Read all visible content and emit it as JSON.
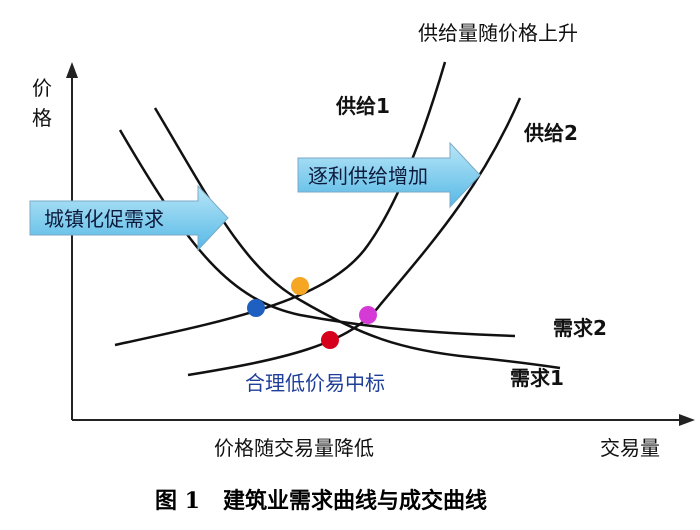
{
  "axes": {
    "y_label_char1": "价",
    "y_label_char2": "格",
    "x_label": "交易量"
  },
  "curves": {
    "supply1": "供给1",
    "supply2": "供给2",
    "demand1": "需求1",
    "demand2": "需求2"
  },
  "annotations": {
    "supply_rise": "供给量随价格上升",
    "price_fall": "价格随交易量降低",
    "reasonable_low_price": "合理低价易中标"
  },
  "arrows": {
    "urbanization": "城镇化促需求",
    "gradual_supply": "逐利供给增加"
  },
  "points": {
    "blue": "#1f5fbf",
    "orange": "#f5a623",
    "red": "#d6001c",
    "magenta": "#d63ad6"
  },
  "caption": "图 1   建筑业需求曲线与成交曲线"
}
